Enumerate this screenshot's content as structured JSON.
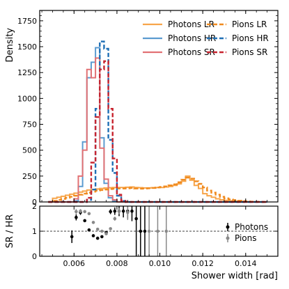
{
  "chart_data": [
    {
      "type": "line",
      "plot": "histogram",
      "ylabel": "Density",
      "xlim": [
        0.0044,
        0.0155
      ],
      "ylim": [
        0,
        1850
      ],
      "yticks": [
        0,
        250,
        500,
        750,
        1000,
        1250,
        1500,
        1750
      ],
      "bin_edges": [
        0.0048,
        0.005,
        0.0052,
        0.0054,
        0.0056,
        0.0058,
        0.006,
        0.0062,
        0.0064,
        0.0066,
        0.0068,
        0.007,
        0.0072,
        0.0074,
        0.0076,
        0.0078,
        0.008,
        0.0082,
        0.0084,
        0.0086,
        0.0088,
        0.009,
        0.0092,
        0.0094,
        0.0096,
        0.0098,
        0.01,
        0.0102,
        0.0104,
        0.0106,
        0.0108,
        0.011,
        0.0112,
        0.0114,
        0.0116,
        0.0118,
        0.012,
        0.0122,
        0.0124,
        0.0126,
        0.0128,
        0.013,
        0.0132,
        0.0134,
        0.0136,
        0.0138,
        0.014,
        0.0142,
        0.0144,
        0.0146,
        0.0148,
        0.015
      ],
      "legend": {
        "placement": "top-right",
        "columns": 2
      },
      "series": [
        {
          "name": "Photons LR",
          "color": "#f7a54a",
          "dash": false,
          "values": [
            0,
            35,
            45,
            55,
            65,
            75,
            85,
            95,
            105,
            115,
            120,
            125,
            130,
            135,
            138,
            140,
            140,
            140,
            142,
            145,
            140,
            138,
            135,
            135,
            138,
            140,
            140,
            145,
            150,
            160,
            175,
            200,
            250,
            210,
            160,
            130,
            80,
            60,
            45,
            30,
            20,
            15,
            10,
            8,
            5,
            4,
            3,
            2,
            1,
            0,
            0
          ]
        },
        {
          "name": "Photons HR",
          "color": "#5b9bd0",
          "dash": false,
          "values": [
            0,
            0,
            0,
            0,
            0,
            0,
            10,
            150,
            580,
            1200,
            1350,
            1490,
            620,
            180,
            40,
            10,
            0,
            0,
            0,
            0,
            0,
            0,
            0,
            0,
            0,
            0,
            0,
            0,
            0,
            0,
            0,
            0,
            0,
            0,
            0,
            0,
            0,
            0,
            0,
            0,
            0,
            0,
            0,
            0,
            0,
            0,
            0,
            0,
            0,
            0,
            0
          ]
        },
        {
          "name": "Photons SR",
          "color": "#e27174",
          "dash": false,
          "values": [
            0,
            0,
            0,
            0,
            0,
            0,
            30,
            250,
            500,
            1280,
            1200,
            1390,
            520,
            220,
            60,
            20,
            0,
            0,
            0,
            0,
            0,
            0,
            0,
            0,
            0,
            0,
            0,
            0,
            0,
            0,
            0,
            0,
            0,
            0,
            0,
            0,
            0,
            0,
            0,
            0,
            0,
            0,
            0,
            0,
            0,
            0,
            0,
            0,
            0,
            0,
            0
          ]
        },
        {
          "name": "Pions LR",
          "color": "#f08a1e",
          "dash": true,
          "values": [
            0,
            10,
            20,
            30,
            40,
            50,
            60,
            70,
            80,
            90,
            100,
            110,
            115,
            120,
            125,
            128,
            130,
            130,
            132,
            135,
            130,
            128,
            130,
            132,
            135,
            140,
            145,
            150,
            160,
            170,
            190,
            215,
            235,
            225,
            200,
            175,
            140,
            110,
            90,
            70,
            50,
            35,
            25,
            18,
            12,
            8,
            5,
            3,
            2,
            1,
            0
          ]
        },
        {
          "name": "Pions HR",
          "color": "#1f6fb5",
          "dash": true,
          "values": [
            0,
            0,
            0,
            0,
            0,
            0,
            0,
            0,
            0,
            20,
            120,
            900,
            1550,
            1480,
            600,
            280,
            60,
            10,
            0,
            0,
            0,
            0,
            0,
            0,
            0,
            0,
            0,
            0,
            0,
            0,
            0,
            0,
            0,
            0,
            0,
            0,
            0,
            0,
            0,
            0,
            0,
            0,
            0,
            0,
            0,
            0,
            0,
            0,
            0,
            0,
            0
          ]
        },
        {
          "name": "Pions SR",
          "color": "#c8242f",
          "dash": true,
          "values": [
            0,
            0,
            0,
            0,
            0,
            0,
            0,
            0,
            0,
            40,
            380,
            820,
            1280,
            1360,
            900,
            420,
            70,
            10,
            0,
            0,
            0,
            0,
            0,
            0,
            0,
            0,
            0,
            0,
            0,
            0,
            0,
            0,
            0,
            0,
            0,
            0,
            0,
            0,
            0,
            0,
            0,
            0,
            0,
            0,
            0,
            0,
            0,
            0,
            0,
            0,
            0
          ]
        }
      ]
    },
    {
      "type": "scatter",
      "plot": "ratio",
      "xlabel": "Shower width [rad]",
      "ylabel": "SR / HR",
      "xlim": [
        0.0044,
        0.0155
      ],
      "ylim": [
        0,
        2
      ],
      "yticks": [
        0,
        1,
        2
      ],
      "xticks": [
        0.006,
        0.008,
        0.01,
        0.012,
        0.014
      ],
      "xtick_labels": [
        "0.006",
        "0.008",
        "0.010",
        "0.012",
        "0.014"
      ],
      "reference_line": 1,
      "legend": {
        "placement": "right"
      },
      "series": [
        {
          "name": "Photons",
          "color": "#000000",
          "points": [
            {
              "x": 0.0059,
              "y": 0.78,
              "err": 0.25
            },
            {
              "x": 0.0061,
              "y": 1.55,
              "err": 0.12
            },
            {
              "x": 0.0063,
              "y": 1.75,
              "err": 0.1
            },
            {
              "x": 0.0065,
              "y": 1.42,
              "err": 0.06
            },
            {
              "x": 0.0067,
              "y": 1.05,
              "err": 0.04
            },
            {
              "x": 0.0069,
              "y": 0.82,
              "err": 0.03
            },
            {
              "x": 0.0071,
              "y": 0.72,
              "err": 0.03
            },
            {
              "x": 0.0073,
              "y": 0.78,
              "err": 0.04
            },
            {
              "x": 0.0075,
              "y": 0.95,
              "err": 0.05
            },
            {
              "x": 0.0077,
              "y": 1.78,
              "err": 0.1
            },
            {
              "x": 0.0079,
              "y": 1.8,
              "err": 0.15
            },
            {
              "x": 0.0081,
              "y": 1.8,
              "err": 0.2
            },
            {
              "x": 0.0083,
              "y": 1.8,
              "err": 0.25
            },
            {
              "x": 0.0085,
              "y": 1.8,
              "err": 0.3
            },
            {
              "x": 0.0087,
              "y": 1.8,
              "err": 0.4
            },
            {
              "x": 0.0089,
              "y": 1.5,
              "err": 2.5
            },
            {
              "x": 0.0091,
              "y": 1.0,
              "err": 2.5
            },
            {
              "x": 0.0093,
              "y": 1.0,
              "err": 2.5
            }
          ]
        },
        {
          "name": "Pions",
          "color": "#888888",
          "points": [
            {
              "x": 0.0061,
              "y": 1.78,
              "err": 0.1
            },
            {
              "x": 0.0063,
              "y": 1.8,
              "err": 0.08
            },
            {
              "x": 0.0065,
              "y": 1.78,
              "err": 0.06
            },
            {
              "x": 0.0067,
              "y": 1.7,
              "err": 0.05
            },
            {
              "x": 0.0069,
              "y": 1.35,
              "err": 0.05
            },
            {
              "x": 0.0071,
              "y": 1.08,
              "err": 0.04
            },
            {
              "x": 0.0073,
              "y": 1.0,
              "err": 0.03
            },
            {
              "x": 0.0075,
              "y": 0.9,
              "err": 0.03
            },
            {
              "x": 0.0077,
              "y": 1.1,
              "err": 0.04
            },
            {
              "x": 0.0079,
              "y": 1.5,
              "err": 0.08
            },
            {
              "x": 0.0081,
              "y": 1.8,
              "err": 0.12
            },
            {
              "x": 0.0085,
              "y": 1.75,
              "err": 0.3
            },
            {
              "x": 0.0095,
              "y": 1.0,
              "err": 2.5
            },
            {
              "x": 0.0099,
              "y": 1.0,
              "err": 2.5
            },
            {
              "x": 0.0103,
              "y": 1.0,
              "err": 2.5
            }
          ]
        }
      ]
    }
  ]
}
